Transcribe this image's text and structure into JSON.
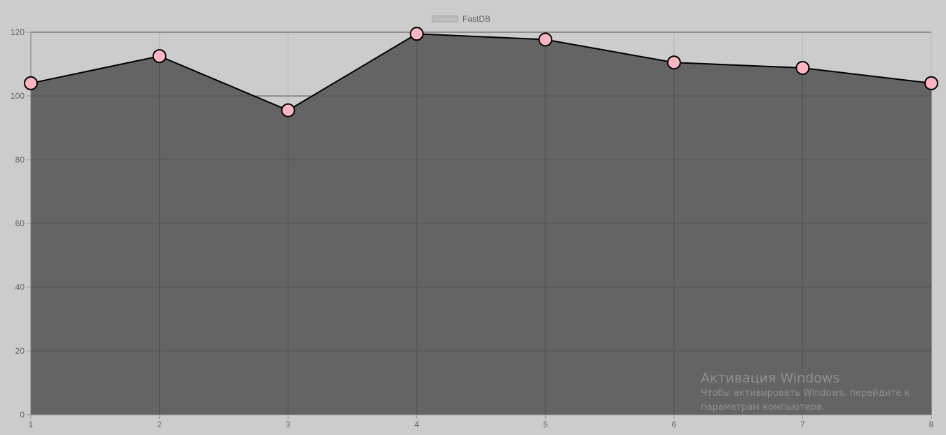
{
  "chart_data": {
    "type": "area",
    "x": [
      1,
      2,
      3,
      4,
      5,
      6,
      7,
      8
    ],
    "series": [
      {
        "name": "FastDB",
        "values": [
          104,
          112.5,
          95.5,
          119.5,
          117.7,
          110.5,
          108.8,
          104
        ]
      }
    ],
    "ylim": [
      0,
      120
    ],
    "yticks": [
      0,
      20,
      40,
      60,
      80,
      100,
      120
    ],
    "xticks": [
      "1",
      "2",
      "3",
      "4",
      "5",
      "6",
      "7",
      "8"
    ],
    "grid": true,
    "legend_position": "top-center",
    "title": "",
    "xlabel": "",
    "ylabel": ""
  },
  "legend": {
    "label": "FastDB"
  },
  "watermark": {
    "title": "Активация Windows",
    "text": "Чтобы активировать Windows, перейдите к параметрам компьютера."
  },
  "colors": {
    "background": "#cccccc",
    "area_fill": "#646464",
    "line": "#000000",
    "point_fill": "#ffb6c1",
    "grid_light": "#b8b8b8",
    "grid_dark": "#555555",
    "tick_text": "#666666"
  }
}
